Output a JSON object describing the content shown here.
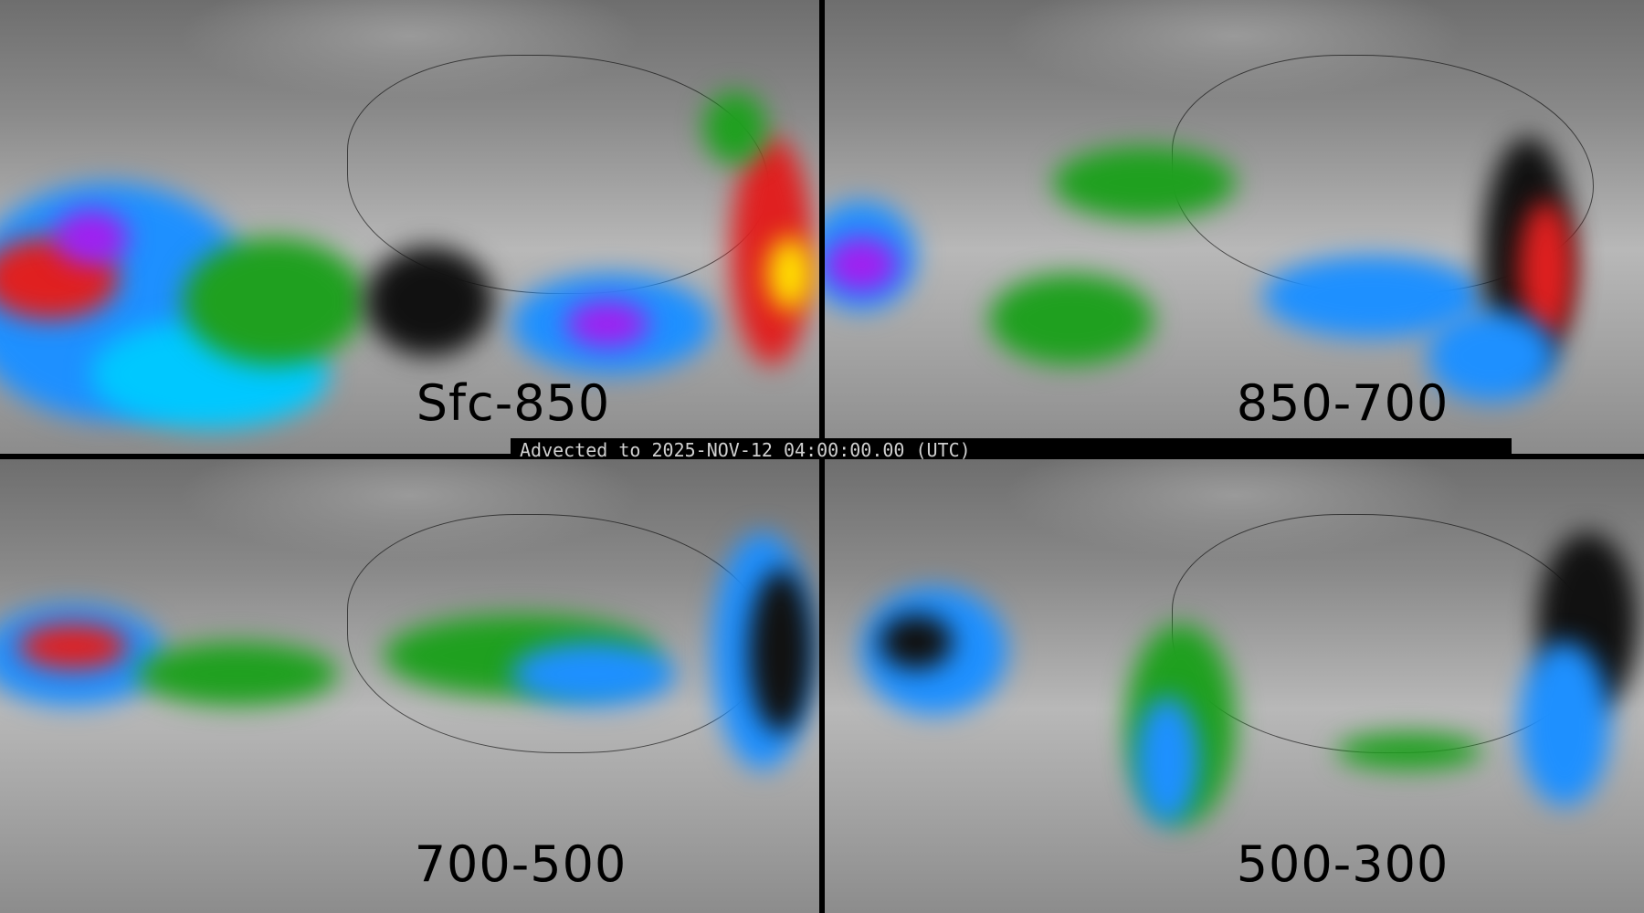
{
  "panels": [
    {
      "label": "Sfc-850"
    },
    {
      "label": "850-700"
    },
    {
      "label": "700-500"
    },
    {
      "label": "500-300"
    }
  ],
  "banner": {
    "text": "Advected to 2025-NOV-12 04:00:00.00 (UTC)"
  },
  "colors": {
    "low": "#808080",
    "green": "#1fa01f",
    "blue": "#1e90ff",
    "cyan": "#00d8ff",
    "purple": "#a020f0",
    "red": "#e02020",
    "orange": "#ff8c00",
    "yellow": "#ffe000"
  }
}
